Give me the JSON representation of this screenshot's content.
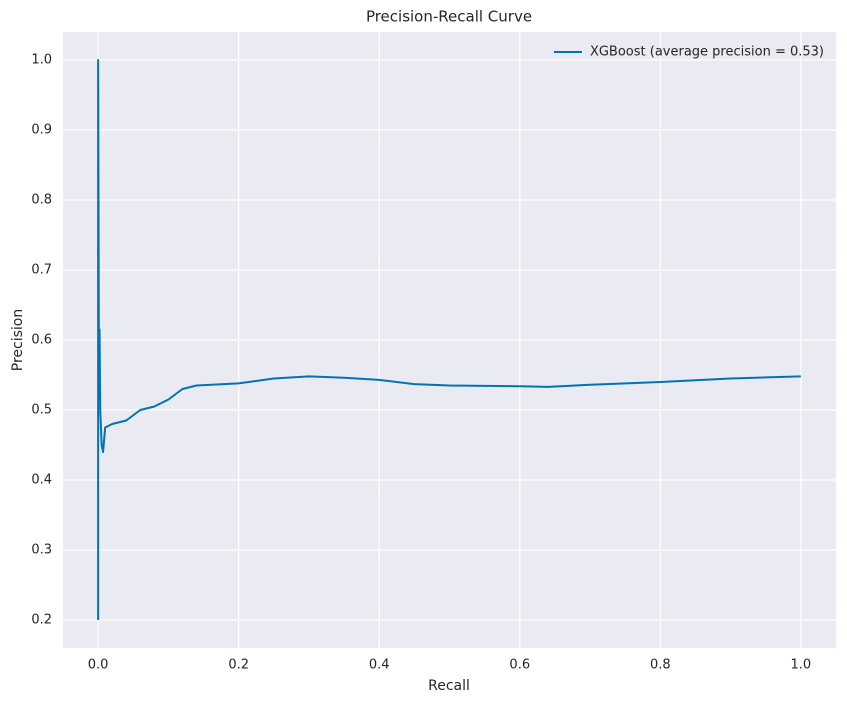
{
  "chart_data": {
    "type": "line",
    "title": "Precision-Recall Curve",
    "xlabel": "Recall",
    "ylabel": "Precision",
    "x": [
      0,
      0,
      0.001,
      0.002,
      0.003,
      0.005,
      0.007,
      0.01,
      0.02,
      0.04,
      0.06,
      0.08,
      0.1,
      0.12,
      0.14,
      0.2,
      0.25,
      0.3,
      0.35,
      0.4,
      0.45,
      0.5,
      0.6,
      0.64,
      0.7,
      0.8,
      0.9,
      1.0
    ],
    "series": [
      {
        "name": "XGBoost (average precision = 0.53)",
        "color": "#0173b2",
        "values": [
          0.2,
          1.0,
          0.6,
          0.615,
          0.5,
          0.45,
          0.44,
          0.475,
          0.48,
          0.485,
          0.5,
          0.505,
          0.515,
          0.53,
          0.535,
          0.538,
          0.545,
          0.548,
          0.546,
          0.543,
          0.537,
          0.535,
          0.534,
          0.533,
          0.536,
          0.54,
          0.545,
          0.548
        ]
      }
    ],
    "xlim": [
      -0.05,
      1.05
    ],
    "xticks": [
      {
        "value": 0,
        "label": "0.0"
      },
      0.2,
      0.4,
      0.6,
      0.8,
      {
        "value": 1,
        "label": "1.0"
      }
    ],
    "ylim": [
      0.16,
      1.04
    ],
    "yticks": [
      0.2,
      0.3,
      0.4,
      0.5,
      0.6,
      0.7,
      0.8,
      0.9,
      {
        "value": 1,
        "label": "1.0"
      }
    ],
    "grid": true,
    "legend": "upper right"
  }
}
